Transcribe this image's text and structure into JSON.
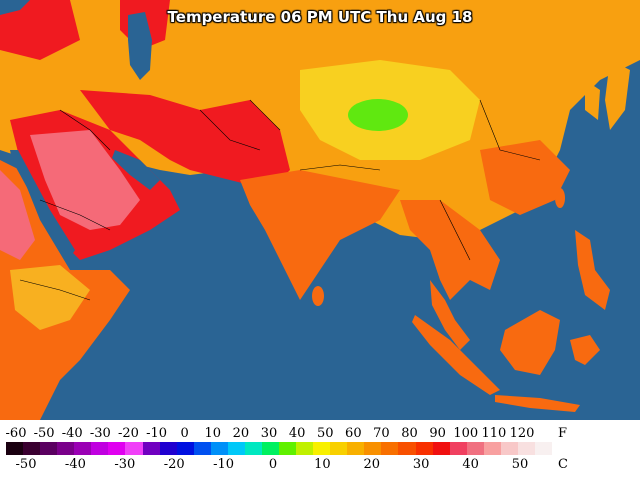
{
  "title": "Temperature 06 PM UTC Thu Aug 18",
  "legend": {
    "fahrenheit_unit": "F",
    "celsius_unit": "C",
    "fahrenheit_ticks": [
      "-60",
      "-50",
      "-40",
      "-30",
      "-20",
      "-10",
      "0",
      "10",
      "20",
      "30",
      "40",
      "50",
      "60",
      "70",
      "80",
      "90",
      "100",
      "110",
      "120"
    ],
    "celsius_ticks": [
      "-50",
      "-40",
      "-30",
      "-20",
      "-10",
      "0",
      "10",
      "20",
      "30",
      "40",
      "50"
    ],
    "colors": [
      "#1a0010",
      "#3a0030",
      "#5a0060",
      "#7a008a",
      "#9a00b4",
      "#c000e0",
      "#e000f0",
      "#f040f8",
      "#7000c0",
      "#2000d0",
      "#0010e0",
      "#0050f0",
      "#0090f8",
      "#00c8f8",
      "#00e8c0",
      "#00f060",
      "#60f000",
      "#c0f000",
      "#f8f000",
      "#f8d000",
      "#f8b000",
      "#f89000",
      "#f87000",
      "#f85000",
      "#f83000",
      "#f01010",
      "#f04060",
      "#f07080",
      "#f8a0a0",
      "#f8c8c8",
      "#f8e0e0",
      "#f8f0f0"
    ]
  },
  "map": {
    "ocean_color": "#2a6494",
    "land_colors": {
      "hot": "#f0101a",
      "very_hot": "#f56a78",
      "warm": "#f86a10",
      "mild": "#f8a010",
      "cool": "#f8d020",
      "coolest": "#60e810"
    }
  }
}
